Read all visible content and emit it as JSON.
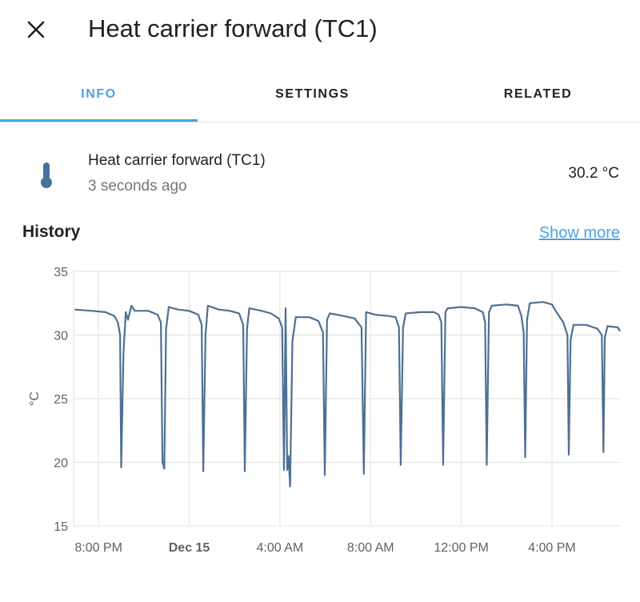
{
  "header": {
    "title": "Heat carrier forward (TC1)",
    "close_icon": "close-icon"
  },
  "tabs": [
    {
      "label": "INFO",
      "active": true
    },
    {
      "label": "SETTINGS",
      "active": false
    },
    {
      "label": "RELATED",
      "active": false
    }
  ],
  "entity": {
    "icon": "thermometer-icon",
    "name": "Heat carrier forward (TC1)",
    "last_changed": "3 seconds ago",
    "state": "30.2 °C"
  },
  "history": {
    "title": "History",
    "show_more": "Show more"
  },
  "colors": {
    "accent": "#4ba3e3",
    "line": "#4e6f94",
    "icon": "#44739e"
  },
  "chart_data": {
    "type": "line",
    "title": "",
    "xlabel": "",
    "ylabel": "°C",
    "ylim": [
      15,
      35
    ],
    "yticks": [
      35,
      30,
      25,
      20,
      15
    ],
    "xticks": [
      {
        "label": "8:00 PM",
        "t": 0,
        "bold": false
      },
      {
        "label": "Dec 15",
        "t": 4,
        "bold": true
      },
      {
        "label": "4:00 AM",
        "t": 8,
        "bold": false
      },
      {
        "label": "8:00 AM",
        "t": 12,
        "bold": false
      },
      {
        "label": "12:00 PM",
        "t": 16,
        "bold": false
      },
      {
        "label": "4:00 PM",
        "t": 20,
        "bold": false
      }
    ],
    "xlim": [
      -1.1,
      23.0
    ],
    "grid": true,
    "series": [
      {
        "name": "",
        "points": [
          [
            -1.05,
            32.0
          ],
          [
            -0.3,
            31.9
          ],
          [
            0.3,
            31.8
          ],
          [
            0.7,
            31.5
          ],
          [
            0.85,
            31.0
          ],
          [
            0.95,
            30.0
          ],
          [
            1.0,
            19.6
          ],
          [
            1.1,
            28.5
          ],
          [
            1.2,
            31.8
          ],
          [
            1.3,
            31.2
          ],
          [
            1.45,
            32.3
          ],
          [
            1.6,
            31.9
          ],
          [
            2.2,
            31.9
          ],
          [
            2.6,
            31.6
          ],
          [
            2.75,
            31.0
          ],
          [
            2.82,
            20.0
          ],
          [
            2.9,
            19.5
          ],
          [
            2.98,
            30.5
          ],
          [
            3.1,
            32.2
          ],
          [
            3.5,
            32.0
          ],
          [
            4.0,
            31.9
          ],
          [
            4.4,
            31.6
          ],
          [
            4.55,
            30.8
          ],
          [
            4.62,
            19.3
          ],
          [
            4.72,
            30.0
          ],
          [
            4.82,
            32.3
          ],
          [
            5.3,
            32.0
          ],
          [
            5.8,
            31.9
          ],
          [
            6.2,
            31.7
          ],
          [
            6.38,
            30.8
          ],
          [
            6.45,
            19.3
          ],
          [
            6.55,
            30.5
          ],
          [
            6.65,
            32.1
          ],
          [
            7.2,
            31.9
          ],
          [
            7.6,
            31.7
          ],
          [
            7.95,
            31.3
          ],
          [
            8.1,
            30.6
          ],
          [
            8.18,
            19.4
          ],
          [
            8.25,
            32.1
          ],
          [
            8.32,
            19.4
          ],
          [
            8.38,
            20.5
          ],
          [
            8.45,
            18.1
          ],
          [
            8.55,
            29.5
          ],
          [
            8.7,
            31.4
          ],
          [
            9.3,
            31.4
          ],
          [
            9.7,
            31.1
          ],
          [
            9.9,
            30.2
          ],
          [
            9.98,
            19.0
          ],
          [
            10.08,
            31.2
          ],
          [
            10.2,
            31.7
          ],
          [
            10.8,
            31.5
          ],
          [
            11.3,
            31.3
          ],
          [
            11.6,
            30.6
          ],
          [
            11.7,
            19.1
          ],
          [
            11.8,
            31.8
          ],
          [
            12.2,
            31.6
          ],
          [
            12.8,
            31.5
          ],
          [
            13.1,
            31.4
          ],
          [
            13.25,
            30.6
          ],
          [
            13.33,
            19.8
          ],
          [
            13.43,
            30.6
          ],
          [
            13.55,
            31.7
          ],
          [
            14.2,
            31.8
          ],
          [
            14.8,
            31.8
          ],
          [
            15.0,
            31.6
          ],
          [
            15.12,
            31.0
          ],
          [
            15.2,
            19.8
          ],
          [
            15.3,
            31.8
          ],
          [
            15.4,
            32.1
          ],
          [
            16.0,
            32.2
          ],
          [
            16.6,
            32.1
          ],
          [
            16.95,
            31.8
          ],
          [
            17.05,
            31.0
          ],
          [
            17.12,
            19.8
          ],
          [
            17.22,
            31.8
          ],
          [
            17.35,
            32.3
          ],
          [
            18.0,
            32.4
          ],
          [
            18.5,
            32.3
          ],
          [
            18.65,
            31.5
          ],
          [
            18.75,
            30.2
          ],
          [
            18.82,
            20.4
          ],
          [
            18.9,
            31.2
          ],
          [
            19.02,
            32.5
          ],
          [
            19.6,
            32.6
          ],
          [
            20.0,
            32.4
          ],
          [
            20.2,
            31.8
          ],
          [
            20.5,
            31.0
          ],
          [
            20.68,
            30.0
          ],
          [
            20.74,
            20.6
          ],
          [
            20.82,
            29.6
          ],
          [
            20.95,
            30.8
          ],
          [
            21.5,
            30.8
          ],
          [
            22.0,
            30.5
          ],
          [
            22.2,
            30.0
          ],
          [
            22.27,
            20.8
          ],
          [
            22.33,
            29.8
          ],
          [
            22.45,
            30.7
          ],
          [
            22.9,
            30.6
          ],
          [
            23.0,
            30.3
          ]
        ]
      }
    ]
  }
}
